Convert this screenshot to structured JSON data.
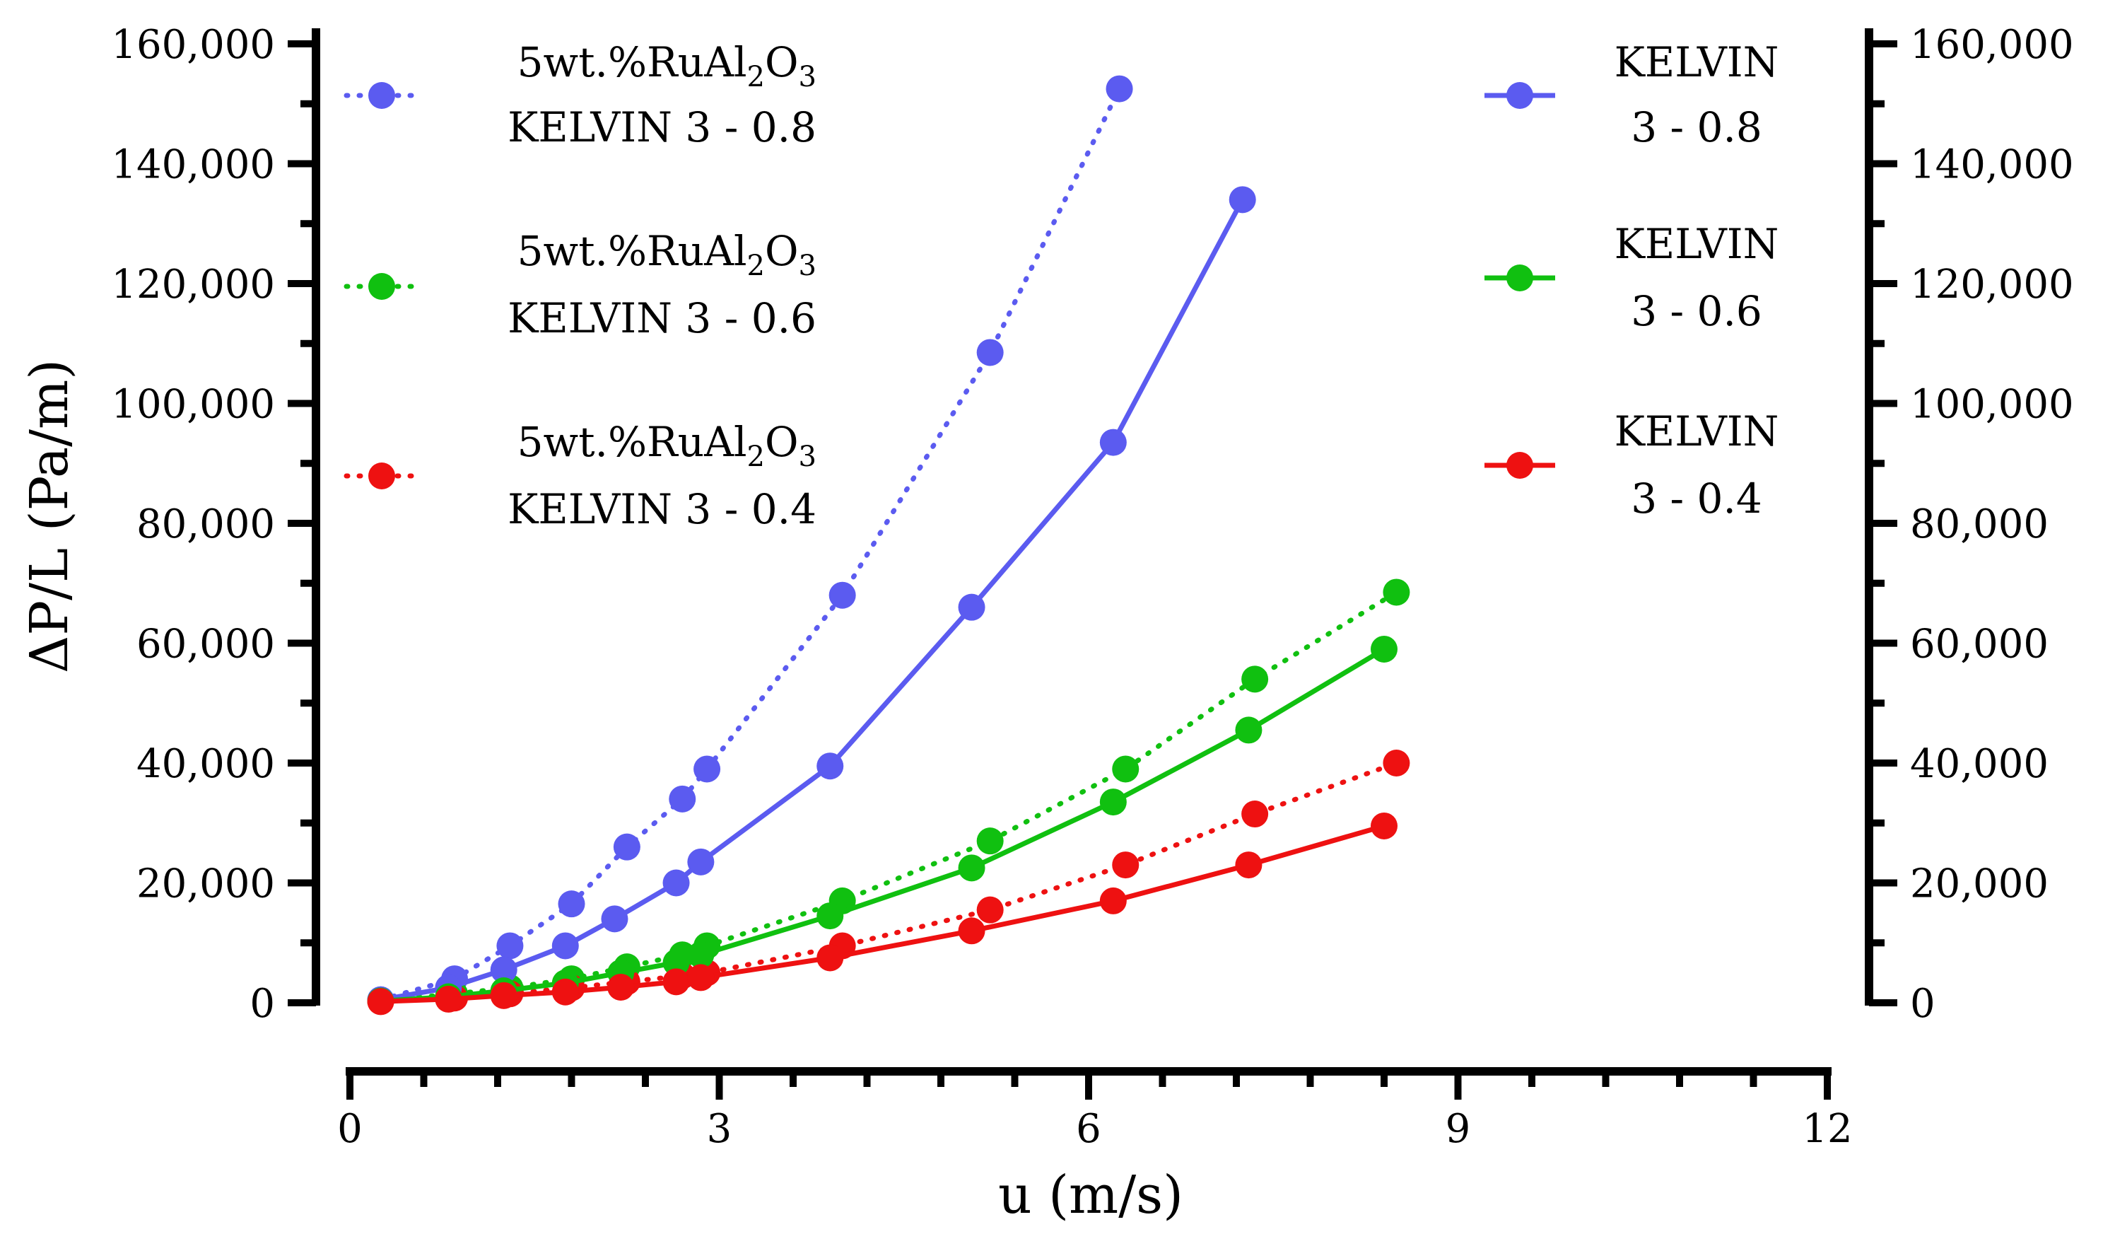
{
  "chart_data": {
    "type": "line",
    "title": "",
    "xlabel": "u (m/s)",
    "ylabel": "ΔP/L (Pa/m)",
    "xlim": [
      0,
      12
    ],
    "ylim": [
      0,
      160000
    ],
    "xticks": [
      0,
      3,
      6,
      9,
      12
    ],
    "xtick_labels": [
      "0",
      "3",
      "6",
      "9",
      "12"
    ],
    "yticks": [
      0,
      20000,
      40000,
      60000,
      80000,
      100000,
      120000,
      140000,
      160000
    ],
    "ytick_labels": [
      "0",
      "20,000",
      "40,000",
      "60,000",
      "80,000",
      "100,000",
      "120,000",
      "140,000",
      "160,000"
    ],
    "right_ytick_labels": [
      "0",
      "20,000",
      "40,000",
      "60,000",
      "80,000",
      "100,000",
      "120,000",
      "140,000",
      "160,000"
    ],
    "series": [
      {
        "name": "5wt.%RuAl2O3 KELVIN 3 - 0.8",
        "legend_line1": "5wt.%RuAl",
        "legend_sub1": "2",
        "legend_mid": "O",
        "legend_sub2": "3",
        "legend_line2": "KELVIN 3 - 0.8",
        "style": "dotted",
        "color": "#5b5bf0",
        "x": [
          0.25,
          0.85,
          1.3,
          1.8,
          2.25,
          2.7,
          2.9,
          4.0,
          5.2,
          6.25
        ],
        "y": [
          500,
          4000,
          9500,
          16500,
          26000,
          34000,
          39000,
          68000,
          108500,
          152500
        ]
      },
      {
        "name": "5wt.%RuAl2O3 KELVIN 3 - 0.6",
        "legend_line1": "5wt.%RuAl",
        "legend_sub1": "2",
        "legend_mid": "O",
        "legend_sub2": "3",
        "legend_line2": "KELVIN 3 - 0.6",
        "style": "dotted",
        "color": "#10c010",
        "x": [
          0.25,
          0.85,
          1.3,
          1.8,
          2.25,
          2.7,
          2.9,
          4.0,
          5.2,
          6.3,
          7.35,
          8.5
        ],
        "y": [
          300,
          1500,
          2500,
          4000,
          6000,
          8000,
          9500,
          17000,
          27000,
          39000,
          54000,
          68500
        ]
      },
      {
        "name": "5wt.%RuAl2O3 KELVIN 3 - 0.4",
        "legend_line1": "5wt.%RuAl",
        "legend_sub1": "2",
        "legend_mid": "O",
        "legend_sub2": "3",
        "legend_line2": "KELVIN 3 - 0.4",
        "style": "dotted",
        "color": "#ee1111",
        "x": [
          0.25,
          0.85,
          1.3,
          1.8,
          2.25,
          2.7,
          2.9,
          4.0,
          5.2,
          6.3,
          7.35,
          8.5
        ],
        "y": [
          200,
          800,
          1500,
          2500,
          3500,
          4500,
          5000,
          9500,
          15500,
          23000,
          31500,
          40000
        ]
      },
      {
        "name": "KELVIN 3 - 0.8",
        "legend_line1": "KELVIN",
        "legend_line2": "3 - 0.8",
        "style": "solid",
        "color": "#5b5bf0",
        "x": [
          0.25,
          0.8,
          1.25,
          1.75,
          2.15,
          2.65,
          2.85,
          3.9,
          5.05,
          6.2,
          7.25
        ],
        "y": [
          500,
          2500,
          5500,
          9500,
          14000,
          20000,
          23500,
          39500,
          66000,
          93500,
          134000
        ]
      },
      {
        "name": "KELVIN 3 - 0.6",
        "legend_line1": "KELVIN",
        "legend_line2": "3 - 0.6",
        "style": "solid",
        "color": "#10c010",
        "x": [
          0.25,
          0.8,
          1.25,
          1.75,
          2.2,
          2.65,
          2.85,
          3.9,
          5.05,
          6.2,
          7.3,
          8.4
        ],
        "y": [
          300,
          1000,
          2000,
          3300,
          5000,
          6700,
          8000,
          14500,
          22500,
          33500,
          45500,
          59000
        ]
      },
      {
        "name": "KELVIN 3 - 0.4",
        "legend_line1": "KELVIN",
        "legend_line2": "3 - 0.4",
        "style": "solid",
        "color": "#ee1111",
        "x": [
          0.25,
          0.8,
          1.25,
          1.75,
          2.2,
          2.65,
          2.85,
          3.9,
          5.05,
          6.2,
          7.3,
          8.4
        ],
        "y": [
          200,
          600,
          1200,
          1800,
          2600,
          3500,
          4200,
          7500,
          12000,
          17000,
          23000,
          29500
        ]
      }
    ]
  }
}
